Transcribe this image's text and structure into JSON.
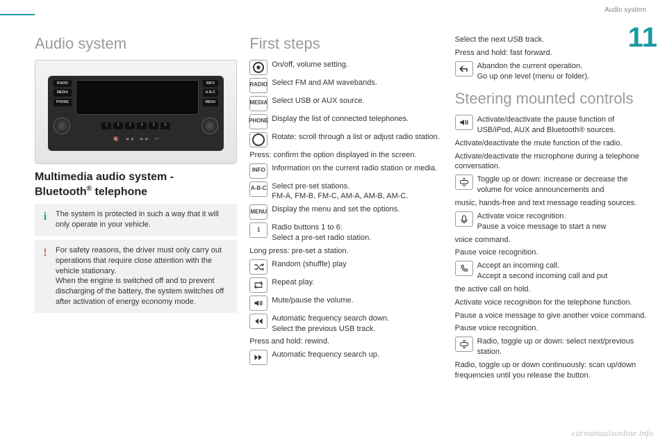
{
  "accent_color": "#1a9ba3",
  "header_category": "Audio system",
  "chapter_number": "11",
  "watermark": "carmanualsonline.info",
  "col1": {
    "title": "Audio system",
    "subtitle_html": "Multimedia audio system - Bluetooth® telephone",
    "subtitle_line1": "Multimedia audio system -",
    "subtitle_line2_a": "Bluetooth",
    "subtitle_line2_sup": "®",
    "subtitle_line2_b": " telephone",
    "radio_labels_left": [
      "RADIO",
      "MEDIA",
      "PHONE"
    ],
    "radio_labels_right": [
      "INFO",
      "A-B-C",
      "MENU"
    ],
    "radio_presets": [
      "1",
      "2",
      "3",
      "4",
      "5",
      "6"
    ],
    "note_info": "The system is protected in such a way that it will only operate in your vehicle.",
    "note_warn": "For safety reasons, the driver must only carry out operations that require close attention with the vehicle stationary.\nWhen the engine is switched off and to prevent discharging of the battery, the system switches off after activation of energy economy mode."
  },
  "col2": {
    "title": "First steps",
    "items": [
      {
        "icon_type": "circ-dot",
        "label": "",
        "text": "On/off, volume setting."
      },
      {
        "icon_type": "text",
        "label": "RADIO",
        "text": "Select FM and AM wavebands."
      },
      {
        "icon_type": "text",
        "label": "MEDIA",
        "text": "Select USB or AUX source."
      },
      {
        "icon_type": "text",
        "label": "PHONE",
        "text": "Display the list of connected telephones."
      },
      {
        "icon_type": "circ",
        "label": "",
        "text": "Rotate: scroll through a list or adjust radio station."
      }
    ],
    "plain1": "Press: confirm the option displayed in the screen.",
    "items2": [
      {
        "icon_type": "text",
        "label": "INFO",
        "text": "Information on the current radio station or media."
      },
      {
        "icon_type": "text",
        "label": "A-B-C",
        "text": "Select pre-set stations.\nFM-A, FM-B, FM-C, AM-A, AM-B, AM-C."
      },
      {
        "icon_type": "text",
        "label": "MENU",
        "text": "Display the menu and set the options."
      },
      {
        "icon_type": "text",
        "label": "1",
        "text": "Radio buttons 1 to 6:\nSelect a pre-set radio station."
      }
    ],
    "plain2": "Long press: pre-set a station.",
    "items3": [
      {
        "icon_type": "svg",
        "svg": "shuffle",
        "text": "Random (shuffle) play"
      },
      {
        "icon_type": "svg",
        "svg": "repeat",
        "text": "Repeat play."
      },
      {
        "icon_type": "svg",
        "svg": "mute",
        "text": "Mute/pause the volume."
      },
      {
        "icon_type": "svg",
        "svg": "prev",
        "text": "Automatic frequency search down.\nSelect the previous USB track."
      }
    ],
    "plain3": "Press and hold: rewind.",
    "items4": [
      {
        "icon_type": "svg",
        "svg": "next",
        "text": "Automatic frequency search up."
      }
    ]
  },
  "col3": {
    "top_text1": "Select the next USB track.",
    "top_text2": "Press and hold: fast forward.",
    "back_item": {
      "text": "Abandon the current operation.\nGo up one level (menu or folder)."
    },
    "title": "Steering mounted controls",
    "items": [
      {
        "icon_type": "svg",
        "svg": "mute",
        "text": "Activate/deactivate the pause function of USB/iPod, AUX and Bluetooth® sources."
      }
    ],
    "plain1": "Activate/deactivate the mute function of the radio.",
    "plain2": "Activate/deactivate the microphone during a telephone conversation.",
    "items2": [
      {
        "icon_type": "svg",
        "svg": "toggle",
        "text": "Toggle up or down: increase or decrease the volume for voice announcements and"
      }
    ],
    "plain3": "music, hands-free and text message reading sources.",
    "items3": [
      {
        "icon_type": "svg",
        "svg": "voice",
        "text": "Activate voice recognition.\nPause a voice message to start a new"
      }
    ],
    "plain4": "voice command.",
    "plain5": "Pause voice recognition.",
    "items4": [
      {
        "icon_type": "svg",
        "svg": "phone",
        "text": "Accept an incoming call.\nAccept a second incoming call and put"
      }
    ],
    "plain6": "the active call on hold.",
    "plain7": "Activate voice recognition for the telephone function.",
    "plain8": "Pause a voice message to give another voice command.",
    "plain9": "Pause voice recognition.",
    "items5": [
      {
        "icon_type": "svg",
        "svg": "toggle",
        "text": "Radio, toggle up or down: select next/previous station."
      }
    ],
    "plain10": "Radio, toggle up or down continuously: scan up/down frequencies until you release the button."
  }
}
